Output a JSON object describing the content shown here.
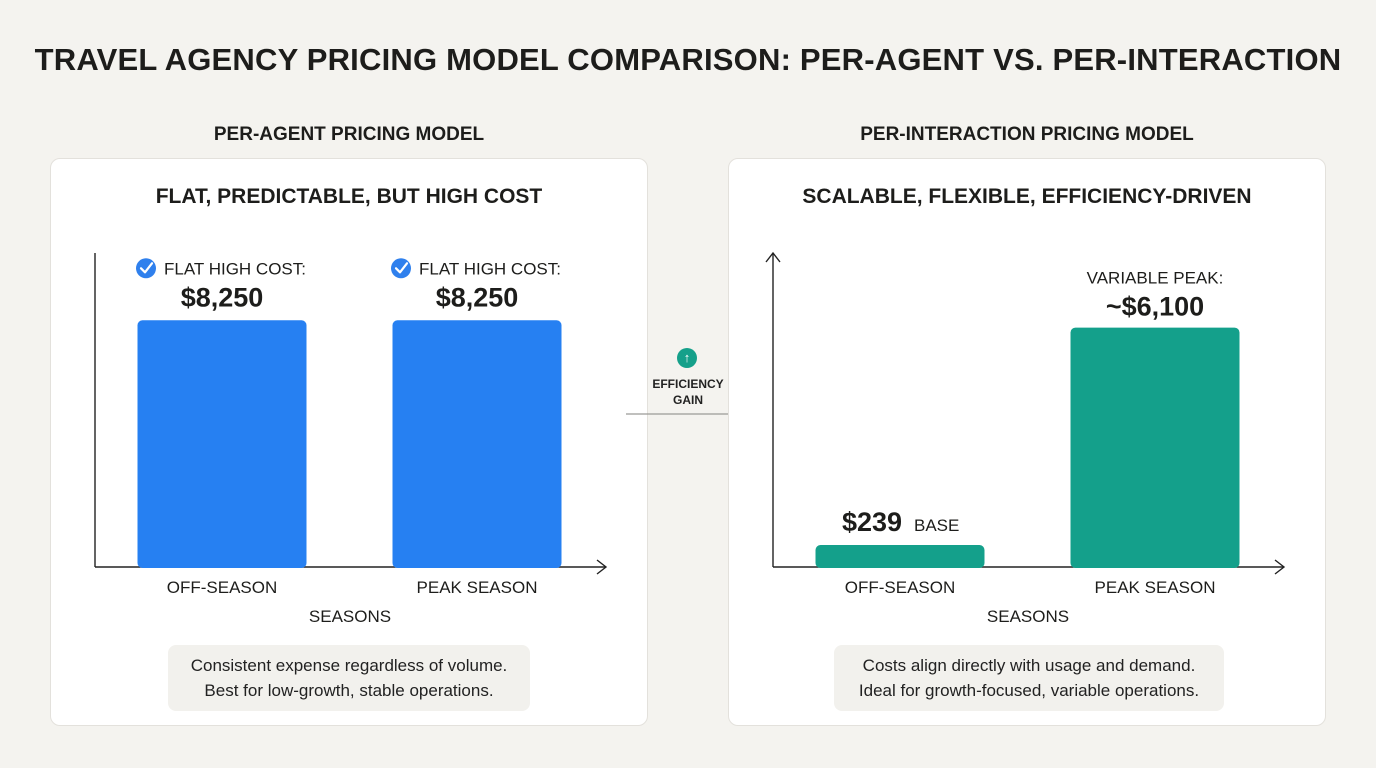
{
  "title": "TRAVEL AGENCY PRICING MODEL COMPARISON: PER-AGENT VS. PER-INTERACTION",
  "colors": {
    "background": "#f4f3ef",
    "blue": "#2680f2",
    "teal": "#14a08b",
    "check": "#2f80ed"
  },
  "left": {
    "section_label": "PER-AGENT PRICING MODEL",
    "panel_title": "FLAT, PREDICTABLE, BUT HIGH COST",
    "note": [
      "Consistent expense regardless of volume.",
      "Best for low-growth, stable operations."
    ]
  },
  "right": {
    "section_label": "PER-INTERACTION PRICING MODEL",
    "panel_title": "SCALABLE, FLEXIBLE, EFFICIENCY-DRIVEN",
    "note": [
      "Costs align directly with usage and demand.",
      "Ideal for growth-focused, variable operations."
    ]
  },
  "efficiency": {
    "line1": "EFFICIENCY",
    "line2": "GAIN",
    "icon": "arrow-up-circle-icon"
  },
  "chart_data": [
    {
      "type": "bar",
      "title": "FLAT, PREDICTABLE, BUT HIGH COST",
      "categories": [
        "OFF-SEASON",
        "PEAK SEASON"
      ],
      "values": [
        8250,
        8250
      ],
      "value_labels": [
        "$8,250",
        "$8,250"
      ],
      "captions": [
        "FLAT HIGH COST:",
        "FLAT HIGH COST:"
      ],
      "xlabel": "SEASONS",
      "ylabel": "",
      "ylim": [
        0,
        10500
      ],
      "color": "#2680f2"
    },
    {
      "type": "bar",
      "title": "SCALABLE, FLEXIBLE, EFFICIENCY-DRIVEN",
      "categories": [
        "OFF-SEASON",
        "PEAK SEASON"
      ],
      "values": [
        239,
        6100
      ],
      "value_labels": [
        "$239",
        "~$6,100"
      ],
      "captions": [
        "BASE",
        "VARIABLE PEAK:"
      ],
      "xlabel": "SEASONS",
      "ylabel": "",
      "ylim": [
        0,
        8000
      ],
      "color": "#14a08b"
    }
  ]
}
